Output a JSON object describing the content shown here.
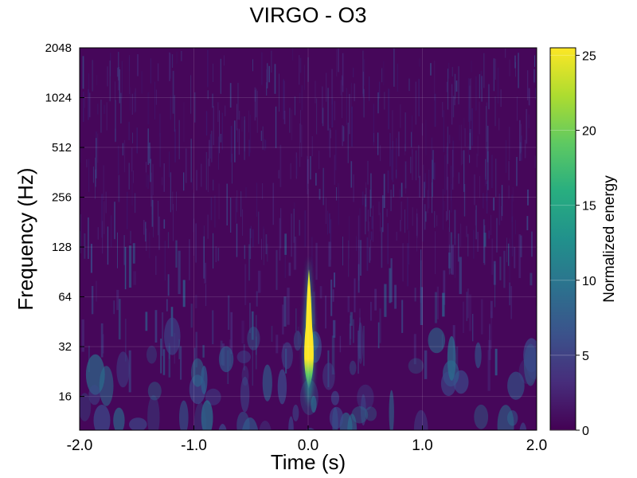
{
  "chart_data": {
    "type": "heatmap",
    "title": "VIRGO - O3",
    "xlabel": "Time (s)",
    "ylabel": "Frequency (Hz)",
    "xlim": [
      -2.0,
      2.0
    ],
    "ylim": [
      10,
      2048
    ],
    "y_scale": "log2",
    "x_ticks": [
      {
        "value": -2.0,
        "label": "-2.0"
      },
      {
        "value": -1.0,
        "label": "-1.0"
      },
      {
        "value": 0.0,
        "label": "0.0"
      },
      {
        "value": 1.0,
        "label": "1.0"
      },
      {
        "value": 2.0,
        "label": "2.0"
      }
    ],
    "y_ticks": [
      {
        "value": 16,
        "label": "16"
      },
      {
        "value": 32,
        "label": "32"
      },
      {
        "value": 64,
        "label": "64"
      },
      {
        "value": 128,
        "label": "128"
      },
      {
        "value": 256,
        "label": "256"
      },
      {
        "value": 512,
        "label": "512"
      },
      {
        "value": 1024,
        "label": "1024"
      },
      {
        "value": 2048,
        "label": "2048"
      }
    ],
    "colorbar": {
      "label": "Normalized energy",
      "colormap": "viridis",
      "range": [
        0,
        25.5
      ],
      "ticks": [
        {
          "value": 0,
          "label": "0"
        },
        {
          "value": 5,
          "label": "5"
        },
        {
          "value": 10,
          "label": "10"
        },
        {
          "value": 15,
          "label": "15"
        },
        {
          "value": 20,
          "label": "20"
        },
        {
          "value": 25,
          "label": "25"
        }
      ]
    },
    "grid": true,
    "features": [
      {
        "name": "chirp",
        "time": 0.0,
        "freq_min": 18,
        "freq_max": 100,
        "peak_energy": 25.5
      },
      {
        "name": "background-noise",
        "energy_level": 1.5
      }
    ]
  }
}
